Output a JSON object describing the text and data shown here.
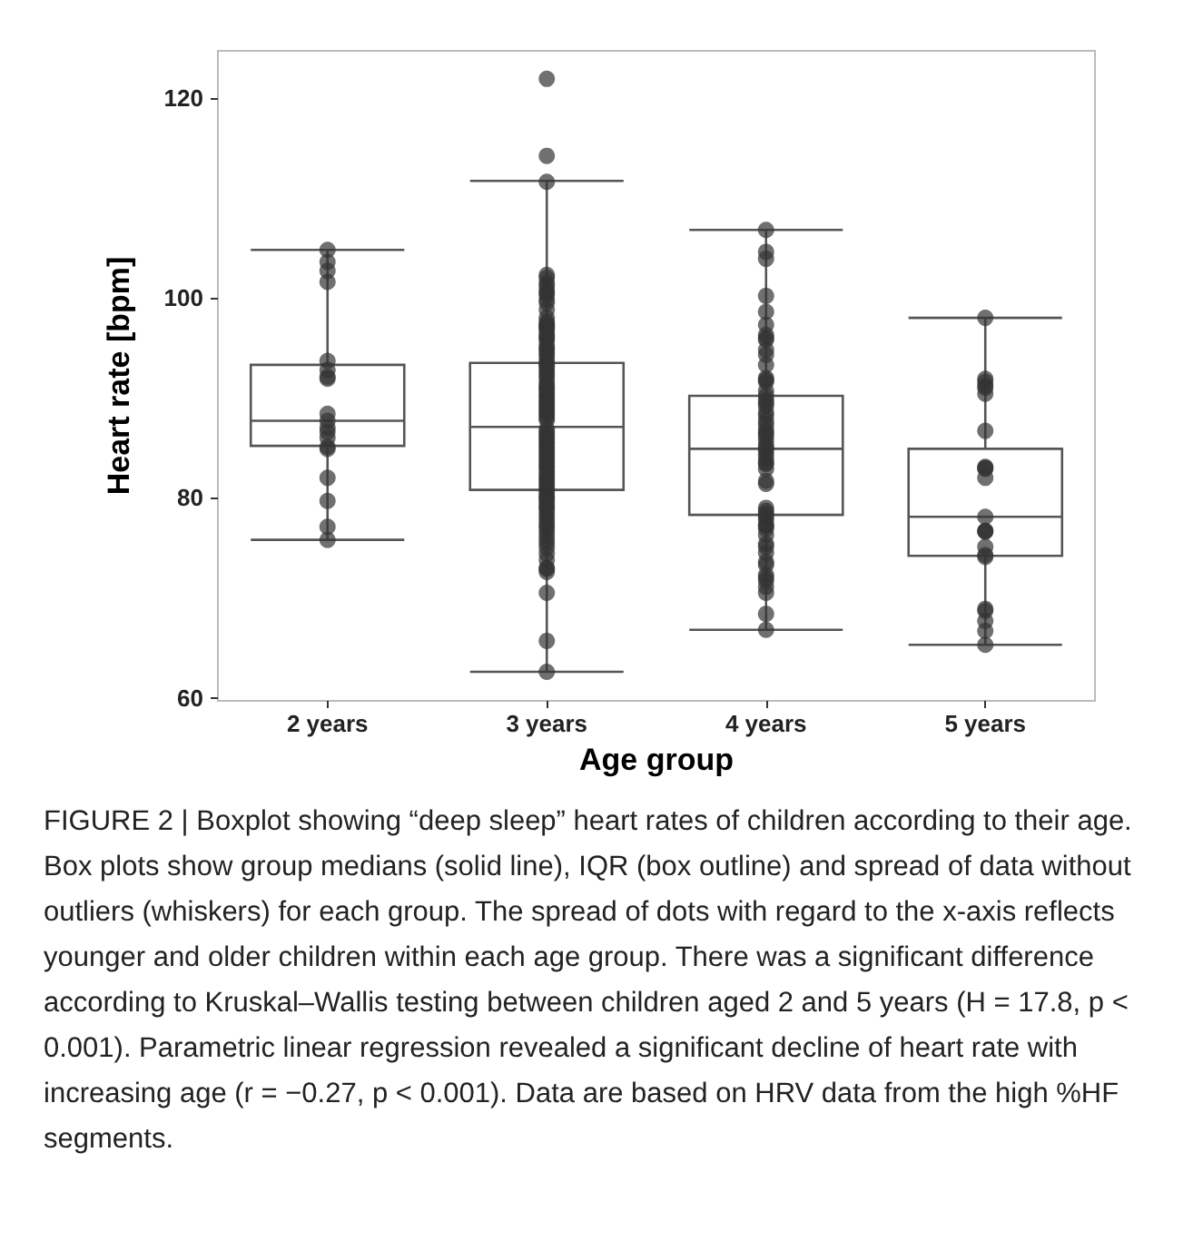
{
  "chart_data": {
    "type": "box",
    "xlabel": "Age group",
    "ylabel": "Heart rate [bpm]",
    "categories": [
      "2 years",
      "3 years",
      "4 years",
      "5 years"
    ],
    "ylim": [
      59.7,
      124.7
    ],
    "yticks": [
      60,
      80,
      100,
      120
    ],
    "grid": false,
    "annotations": [
      "FIGURE 2 | Boxplot showing “deep sleep” heart rates of children according to their age. Box plots show group medians (solid line), IQR (box outline) and spread of data without outliers (whiskers) for each group. The spread of dots with regard to the x-axis reflects younger and older children within each age group. There was a significant difference according to Kruskal–Wallis testing between children aged 2 and 5 years (H = 17.8, p < 0.001). Parametric linear regression revealed a significant decline of heart rate with increasing age (r = −0.27, p < 0.001). Data are based on HRV data from the high %HF segments."
    ],
    "series": [
      {
        "color": "#555555",
        "boxes": [
          {
            "low": 75.8,
            "q1": 85.2,
            "median": 87.7,
            "q3": 93.3,
            "high": 104.8
          },
          {
            "low": 62.6,
            "q1": 80.8,
            "median": 87.1,
            "q3": 93.5,
            "high": 111.7
          },
          {
            "low": 66.8,
            "q1": 78.3,
            "median": 84.9,
            "q3": 90.2,
            "high": 106.8
          },
          {
            "low": 65.3,
            "q1": 74.2,
            "median": 78.1,
            "q3": 84.9,
            "high": 98.0
          }
        ]
      },
      {
        "type": "scatter",
        "color": "#333333",
        "marker": "circle",
        "x": [
          "2 years",
          "2 years",
          "2 years",
          "2 years",
          "2 years",
          "2 years",
          "2 years",
          "2 years",
          "2 years",
          "2 years",
          "2 years",
          "2 years",
          "2 years",
          "2 years",
          "2 years",
          "2 years",
          "2 years",
          "2 years",
          "2 years",
          "3 years",
          "3 years",
          "3 years",
          "3 years",
          "3 years",
          "3 years",
          "3 years",
          "3 years",
          "3 years",
          "3 years",
          "3 years",
          "3 years",
          "3 years",
          "3 years",
          "3 years",
          "3 years",
          "3 years",
          "3 years",
          "3 years",
          "3 years",
          "3 years",
          "3 years",
          "3 years",
          "3 years",
          "3 years",
          "3 years",
          "3 years",
          "3 years",
          "3 years",
          "3 years",
          "3 years",
          "3 years",
          "3 years",
          "3 years",
          "3 years",
          "3 years",
          "3 years",
          "3 years",
          "3 years",
          "3 years",
          "3 years",
          "3 years",
          "3 years",
          "3 years",
          "3 years",
          "3 years",
          "3 years",
          "3 years",
          "3 years",
          "3 years",
          "3 years",
          "3 years",
          "3 years",
          "3 years",
          "3 years",
          "3 years",
          "3 years",
          "3 years",
          "3 years",
          "3 years",
          "3 years",
          "3 years",
          "3 years",
          "3 years",
          "3 years",
          "3 years",
          "3 years",
          "3 years",
          "3 years",
          "3 years",
          "3 years",
          "3 years",
          "3 years",
          "3 years",
          "3 years",
          "3 years",
          "3 years",
          "3 years",
          "3 years",
          "3 years",
          "3 years",
          "3 years",
          "3 years",
          "3 years",
          "3 years",
          "3 years",
          "3 years",
          "3 years",
          "3 years",
          "3 years",
          "3 years",
          "3 years",
          "3 years",
          "3 years",
          "3 years",
          "3 years",
          "3 years",
          "3 years",
          "3 years",
          "3 years",
          "3 years",
          "3 years",
          "4 years",
          "4 years",
          "4 years",
          "4 years",
          "4 years",
          "4 years",
          "4 years",
          "4 years",
          "4 years",
          "4 years",
          "4 years",
          "4 years",
          "4 years",
          "4 years",
          "4 years",
          "4 years",
          "4 years",
          "4 years",
          "4 years",
          "4 years",
          "4 years",
          "4 years",
          "4 years",
          "4 years",
          "4 years",
          "4 years",
          "4 years",
          "4 years",
          "4 years",
          "4 years",
          "4 years",
          "4 years",
          "4 years",
          "4 years",
          "4 years",
          "4 years",
          "4 years",
          "4 years",
          "4 years",
          "4 years",
          "4 years",
          "4 years",
          "4 years",
          "4 years",
          "4 years",
          "4 years",
          "4 years",
          "4 years",
          "4 years",
          "4 years",
          "4 years",
          "4 years",
          "4 years",
          "4 years",
          "4 years",
          "4 years",
          "4 years",
          "4 years",
          "4 years",
          "5 years",
          "5 years",
          "5 years",
          "5 years",
          "5 years",
          "5 years",
          "5 years",
          "5 years",
          "5 years",
          "5 years",
          "5 years",
          "5 years",
          "5 years",
          "5 years",
          "5 years",
          "5 years",
          "5 years",
          "5 years",
          "5 years",
          "5 years",
          "5 years",
          "5 years",
          "5 years"
        ],
        "values": [
          104.8,
          103.6,
          102.7,
          101.6,
          93.7,
          92.8,
          92.1,
          91.9,
          88.4,
          87.7,
          87.0,
          86.6,
          86.0,
          85.1,
          84.9,
          82.0,
          79.7,
          77.1,
          75.8,
          121.9,
          114.2,
          111.6,
          102.3,
          102.0,
          101.5,
          101.2,
          100.8,
          100.5,
          100.3,
          99.8,
          99.5,
          98.8,
          98.0,
          97.6,
          97.4,
          97.2,
          97.0,
          96.9,
          96.5,
          96.2,
          96.0,
          95.8,
          95.3,
          95.0,
          94.8,
          94.5,
          94.2,
          93.8,
          93.5,
          93.3,
          93.1,
          92.8,
          92.5,
          92.2,
          91.9,
          91.5,
          91.2,
          91.0,
          90.8,
          90.5,
          90.2,
          90.0,
          89.7,
          89.5,
          89.2,
          89.0,
          88.8,
          88.5,
          88.3,
          88.0,
          87.8,
          86.9,
          86.6,
          86.4,
          86.1,
          85.9,
          85.6,
          85.4,
          85.1,
          84.9,
          84.6,
          84.3,
          84.0,
          83.8,
          83.5,
          83.2,
          83.0,
          82.7,
          82.4,
          82.1,
          81.9,
          81.6,
          81.3,
          81.0,
          80.8,
          80.5,
          80.2,
          80.0,
          79.8,
          79.5,
          79.2,
          79.0,
          78.7,
          78.3,
          78.0,
          77.6,
          77.3,
          77.0,
          76.6,
          76.2,
          75.8,
          75.4,
          75.0,
          74.4,
          73.8,
          73.0,
          72.9,
          72.6,
          70.5,
          65.7,
          62.6,
          106.8,
          104.6,
          103.9,
          100.2,
          98.6,
          97.3,
          96.3,
          96.0,
          95.8,
          94.8,
          94.3,
          93.3,
          92.0,
          91.8,
          91.6,
          90.7,
          90.2,
          89.8,
          89.5,
          89.2,
          88.6,
          88.2,
          87.7,
          87.3,
          86.8,
          86.5,
          86.2,
          85.8,
          85.3,
          85.0,
          84.7,
          84.3,
          83.9,
          83.5,
          83.4,
          82.9,
          81.7,
          81.4,
          79.0,
          78.7,
          78.4,
          78.1,
          77.8,
          77.3,
          77.2,
          76.9,
          76.3,
          75.4,
          75.1,
          74.5,
          73.6,
          73.3,
          72.3,
          72.0,
          71.7,
          71.1,
          70.5,
          68.4,
          66.8,
          98.0,
          91.9,
          91.6,
          91.2,
          91.0,
          90.4,
          86.7,
          83.1,
          83.0,
          82.9,
          82.0,
          78.1,
          76.7,
          76.7,
          76.6,
          75.1,
          74.3,
          74.1,
          68.9,
          68.7,
          67.7,
          66.7,
          65.3
        ]
      }
    ]
  }
}
